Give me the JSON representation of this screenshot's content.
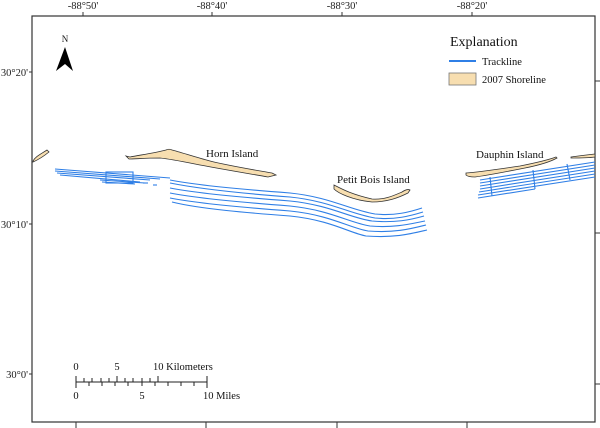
{
  "map": {
    "longitude_ticks": [
      "-88°50'",
      "-88°40'",
      "-88°30'",
      "-88°20'"
    ],
    "latitude_ticks": [
      "30°20'",
      "30°10'",
      "30°0'"
    ],
    "north_arrow_label": "N",
    "islands": [
      {
        "name": "Horn Island"
      },
      {
        "name": "Petit Bois Island"
      },
      {
        "name": "Dauphin Island"
      }
    ]
  },
  "legend": {
    "title": "Explanation",
    "items": [
      {
        "label": "Trackline",
        "color": "#2f7fe6"
      },
      {
        "label": "2007 Shoreline",
        "color": "#f7deb0"
      }
    ]
  },
  "scale_bar": {
    "km_labels": [
      "0",
      "5",
      "10 Kilometers"
    ],
    "mile_labels": [
      "0",
      "5",
      "10 Miles"
    ]
  }
}
